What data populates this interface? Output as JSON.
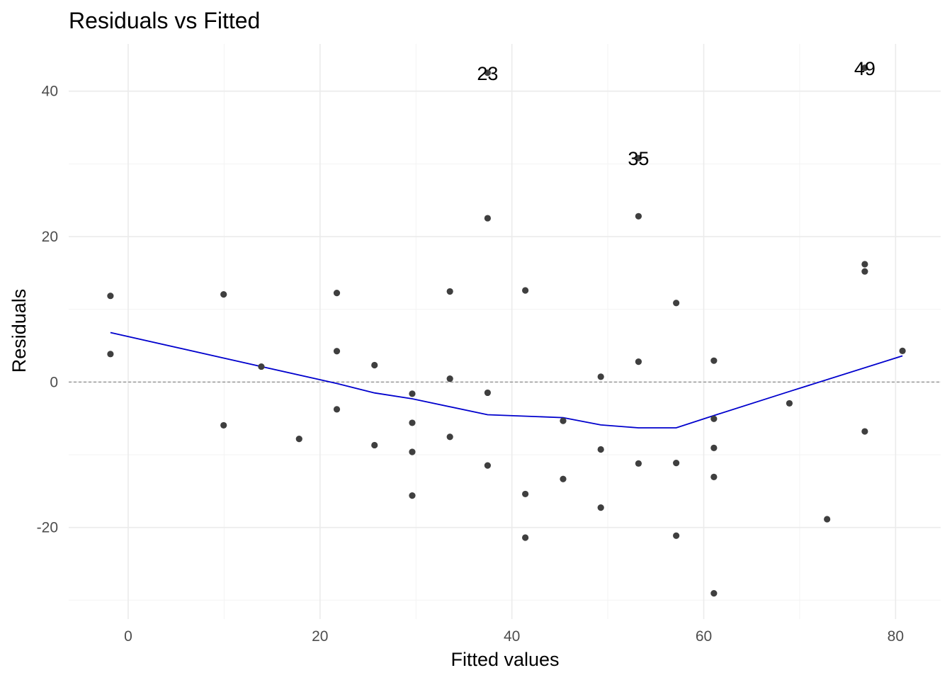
{
  "chart_data": {
    "type": "scatter",
    "title": "Residuals vs Fitted",
    "xlabel": "Fitted values",
    "ylabel": "Residuals",
    "xlim": [
      -6.2,
      84.7
    ],
    "ylim": [
      -32.6,
      46.5
    ],
    "x_ticks": [
      0,
      20,
      40,
      60,
      80
    ],
    "y_ticks": [
      -20,
      0,
      20,
      40
    ],
    "x_tick_labels": [
      "0",
      "20",
      "40",
      "60",
      "80"
    ],
    "y_tick_labels": [
      "-20",
      "0",
      "20",
      "40"
    ],
    "grid": true,
    "reference_line_y": 0,
    "points": [
      {
        "x": -1.85,
        "y": 11.85
      },
      {
        "x": -1.85,
        "y": 3.85
      },
      {
        "x": 9.95,
        "y": 12.05
      },
      {
        "x": 9.95,
        "y": -5.95
      },
      {
        "x": 13.88,
        "y": 2.12
      },
      {
        "x": 17.82,
        "y": -7.82
      },
      {
        "x": 21.75,
        "y": 12.25
      },
      {
        "x": 21.75,
        "y": 4.25
      },
      {
        "x": 21.75,
        "y": -3.75
      },
      {
        "x": 25.68,
        "y": 2.32
      },
      {
        "x": 25.68,
        "y": -8.68
      },
      {
        "x": 29.61,
        "y": -1.61
      },
      {
        "x": 29.61,
        "y": -5.61
      },
      {
        "x": 29.61,
        "y": -9.61
      },
      {
        "x": 29.61,
        "y": -15.61
      },
      {
        "x": 33.54,
        "y": 12.46
      },
      {
        "x": 33.54,
        "y": 0.46
      },
      {
        "x": 33.54,
        "y": -7.54
      },
      {
        "x": 37.47,
        "y": 42.53
      },
      {
        "x": 37.47,
        "y": 22.53
      },
      {
        "x": 37.47,
        "y": -1.47
      },
      {
        "x": 37.47,
        "y": -11.47
      },
      {
        "x": 41.4,
        "y": 12.6
      },
      {
        "x": 41.4,
        "y": -15.4
      },
      {
        "x": 41.4,
        "y": -21.4
      },
      {
        "x": 45.34,
        "y": -5.34
      },
      {
        "x": 45.34,
        "y": -13.34
      },
      {
        "x": 49.27,
        "y": 0.73
      },
      {
        "x": 49.27,
        "y": -9.27
      },
      {
        "x": 49.27,
        "y": -17.27
      },
      {
        "x": 53.2,
        "y": 30.8
      },
      {
        "x": 53.2,
        "y": 22.8
      },
      {
        "x": 53.2,
        "y": 2.8
      },
      {
        "x": 53.2,
        "y": -11.2
      },
      {
        "x": 57.13,
        "y": 10.87
      },
      {
        "x": 57.13,
        "y": -11.13
      },
      {
        "x": 57.13,
        "y": -21.13
      },
      {
        "x": 61.06,
        "y": 2.94
      },
      {
        "x": 61.06,
        "y": -5.06
      },
      {
        "x": 61.06,
        "y": -9.06
      },
      {
        "x": 61.06,
        "y": -13.06
      },
      {
        "x": 61.06,
        "y": -29.06
      },
      {
        "x": 68.93,
        "y": -2.93
      },
      {
        "x": 72.86,
        "y": -18.86
      },
      {
        "x": 76.79,
        "y": 43.21
      },
      {
        "x": 76.79,
        "y": 16.21
      },
      {
        "x": 76.79,
        "y": 15.21
      },
      {
        "x": 76.79,
        "y": -6.79
      },
      {
        "x": 80.72,
        "y": 4.28
      }
    ],
    "labeled_points": [
      {
        "label": "23",
        "x": 37.47,
        "y": 42.53
      },
      {
        "label": "35",
        "x": 53.2,
        "y": 30.8
      },
      {
        "label": "49",
        "x": 76.79,
        "y": 43.21
      }
    ],
    "smooth_line": [
      {
        "x": -1.85,
        "y": 6.8
      },
      {
        "x": 9.95,
        "y": 3.3
      },
      {
        "x": 21.75,
        "y": -0.2
      },
      {
        "x": 25.68,
        "y": -1.5
      },
      {
        "x": 29.61,
        "y": -2.3
      },
      {
        "x": 37.47,
        "y": -4.5
      },
      {
        "x": 45.34,
        "y": -4.9
      },
      {
        "x": 49.27,
        "y": -5.9
      },
      {
        "x": 53.2,
        "y": -6.3
      },
      {
        "x": 57.13,
        "y": -6.3
      },
      {
        "x": 61.06,
        "y": -4.6
      },
      {
        "x": 68.93,
        "y": -1.3
      },
      {
        "x": 80.72,
        "y": 3.6
      }
    ],
    "colors": {
      "point": "#3f3f3f",
      "smooth_line": "#0000cd",
      "reference_line": "#8c8c8c",
      "grid": "#ebebeb"
    }
  }
}
